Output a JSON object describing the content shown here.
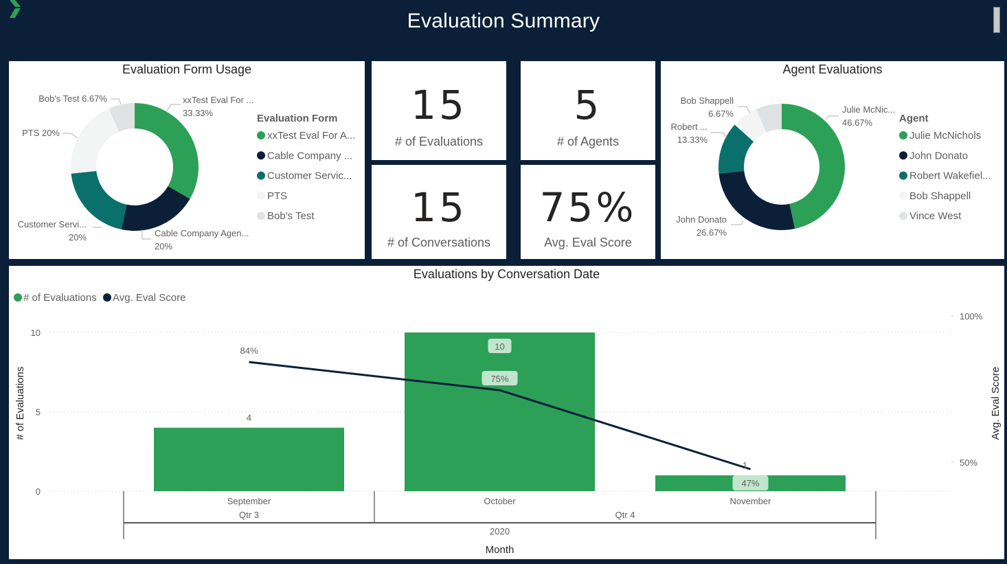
{
  "header": {
    "title": "Evaluation Summary",
    "logo_icon": "chevron-right-logo-icon",
    "scrollbar": "vertical-scrollbar"
  },
  "colors": {
    "background": "#0b2038",
    "green": "#2ca057",
    "navy": "#0b2038",
    "teal": "#0a706c",
    "light": "#f3f4f4",
    "grey": "#e0e3e4"
  },
  "form_usage": {
    "title": "Evaluation Form Usage",
    "legend_title": "Evaluation Form",
    "slices": [
      {
        "legend": "xxTest Eval For A...",
        "label": "xxTest Eval For ...",
        "pct": "33.33%",
        "value": 33.33,
        "color": "#2ca057"
      },
      {
        "legend": "Cable Company ...",
        "label": "Cable Company Agen...",
        "pct": "20%",
        "value": 20,
        "color": "#0b2038"
      },
      {
        "legend": "Customer Servic...",
        "label": "Customer Servi...",
        "pct": "20%",
        "value": 20,
        "color": "#0a706c"
      },
      {
        "legend": "PTS",
        "label": "PTS 20%",
        "pct": "20%",
        "value": 20,
        "color": "#f3f4f4"
      },
      {
        "legend": "Bob's Test",
        "label": "Bob's Test 6.67%",
        "pct": "6.67%",
        "value": 6.67,
        "color": "#e0e3e4"
      }
    ]
  },
  "kpis": [
    {
      "value": "15",
      "label": "# of Evaluations"
    },
    {
      "value": "5",
      "label": "# of Agents"
    },
    {
      "value": "15",
      "label": "# of Conversations"
    },
    {
      "value": "75%",
      "label": "Avg. Eval Score"
    }
  ],
  "agent_evals": {
    "title": "Agent Evaluations",
    "legend_title": "Agent",
    "slices": [
      {
        "legend": "Julie McNichols",
        "label": "Julie McNic...",
        "pct": "46.67%",
        "value": 46.67,
        "color": "#2ca057"
      },
      {
        "legend": "John Donato",
        "label": "John Donato",
        "pct": "26.67%",
        "value": 26.67,
        "color": "#0b2038"
      },
      {
        "legend": "Robert Wakefiel...",
        "label": "Robert ...",
        "pct": "13.33%",
        "value": 13.33,
        "color": "#0a706c"
      },
      {
        "legend": "Bob Shappell",
        "label": "Bob Shappell",
        "pct": "6.67%",
        "value": 6.67,
        "color": "#f3f4f4"
      },
      {
        "legend": "Vince West",
        "label": "",
        "pct": "",
        "value": 6.67,
        "color": "#e0e3e4"
      }
    ]
  },
  "chart_data": {
    "type": "bar",
    "title": "Evaluations by Conversation Date",
    "categories": [
      "September",
      "October",
      "November"
    ],
    "quarters": [
      {
        "label": "Qtr 3",
        "span": 1
      },
      {
        "label": "Qtr 4",
        "span": 2
      }
    ],
    "year": "2020",
    "xlabel": "Month",
    "ylabel": "# of Evaluations",
    "y2label": "Avg. Eval Score",
    "ylim": [
      0,
      10
    ],
    "yticks": [
      "0",
      "5",
      "10"
    ],
    "y2lim": [
      0.4,
      1.0
    ],
    "y2ticks": [
      {
        "value": 0.5,
        "label": "50%"
      },
      {
        "value": 1.0,
        "label": "100%"
      }
    ],
    "grid": true,
    "legend_position": "top-left",
    "series": [
      {
        "name": "# of Evaluations",
        "type": "bar",
        "color": "#2ca057",
        "values": [
          4,
          10,
          1
        ],
        "labels": [
          "4",
          "10",
          "1"
        ]
      },
      {
        "name": "Avg. Eval Score",
        "type": "line",
        "color": "#0b2038",
        "values": [
          0.84,
          0.75,
          0.47
        ],
        "labels": [
          "84%",
          "75%",
          "47%"
        ]
      }
    ]
  }
}
